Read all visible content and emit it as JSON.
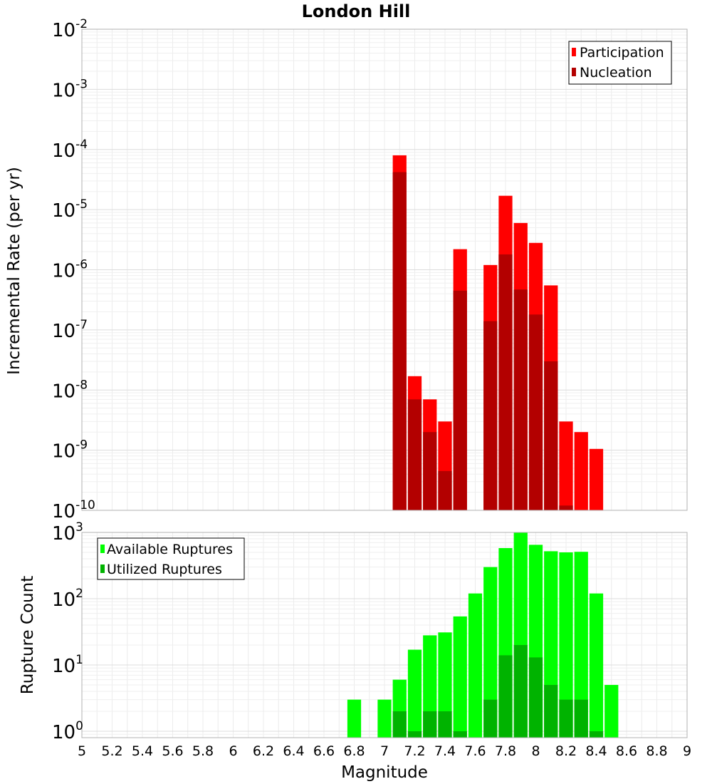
{
  "chart_data": [
    {
      "type": "bar",
      "title": "London Hill",
      "xlabel": "Magnitude",
      "ylabel": "Incremental Rate (per yr)",
      "yscale": "log",
      "ylim": [
        1e-10,
        0.01
      ],
      "xlim": [
        5,
        9
      ],
      "grid": true,
      "legend_position": "top-right",
      "x": [
        7.1,
        7.2,
        7.3,
        7.4,
        7.5,
        7.7,
        7.8,
        7.9,
        8.0,
        8.1,
        8.2,
        8.3,
        8.4
      ],
      "series": [
        {
          "name": "Participation",
          "color": "#ff0000",
          "values": [
            8e-05,
            1.7e-08,
            7e-09,
            3e-09,
            2.2e-06,
            1.2e-06,
            1.7e-05,
            6e-06,
            2.8e-06,
            5.5e-07,
            3e-09,
            2e-09,
            1.05e-09
          ]
        },
        {
          "name": "Nucleation",
          "color": "#b30000",
          "values": [
            4.2e-05,
            7e-09,
            2e-09,
            4.5e-10,
            4.5e-07,
            1.4e-07,
            1.8e-06,
            4.7e-07,
            1.8e-07,
            3e-08,
            1.2e-10,
            null,
            null
          ]
        }
      ]
    },
    {
      "type": "bar",
      "xlabel": "Magnitude",
      "ylabel": "Rupture Count",
      "yscale": "log",
      "ylim": [
        0.8,
        1000
      ],
      "xlim": [
        5,
        9
      ],
      "grid": true,
      "legend_position": "top-left",
      "x": [
        6.8,
        7.0,
        7.1,
        7.2,
        7.3,
        7.4,
        7.5,
        7.6,
        7.7,
        7.8,
        7.9,
        8.0,
        8.1,
        8.2,
        8.3,
        8.4,
        8.5
      ],
      "series": [
        {
          "name": "Available Ruptures",
          "color": "#00ff00",
          "values": [
            3,
            3,
            6,
            17,
            28,
            31,
            54,
            120,
            300,
            580,
            1000,
            650,
            520,
            500,
            510,
            120,
            5
          ]
        },
        {
          "name": "Utilized Ruptures",
          "color": "#00b300",
          "values": [
            null,
            null,
            2,
            1,
            2,
            2,
            1,
            null,
            3,
            14,
            20,
            13,
            5,
            3,
            3,
            1,
            null
          ]
        }
      ]
    }
  ],
  "x_ticks": [
    "5",
    "5.2",
    "5.4",
    "5.6",
    "5.8",
    "6",
    "6.2",
    "6.4",
    "6.6",
    "6.8",
    "7",
    "7.2",
    "7.4",
    "7.6",
    "7.8",
    "8",
    "8.2",
    "8.4",
    "8.6",
    "8.8",
    "9"
  ],
  "top_yticks": [
    {
      "base": "10",
      "exp": "-2"
    },
    {
      "base": "10",
      "exp": "-3"
    },
    {
      "base": "10",
      "exp": "-4"
    },
    {
      "base": "10",
      "exp": "-5"
    },
    {
      "base": "10",
      "exp": "-6"
    },
    {
      "base": "10",
      "exp": "-7"
    },
    {
      "base": "10",
      "exp": "-8"
    },
    {
      "base": "10",
      "exp": "-9"
    },
    {
      "base": "10",
      "exp": "-10"
    }
  ],
  "bottom_yticks": [
    {
      "base": "10",
      "exp": "3"
    },
    {
      "base": "10",
      "exp": "2"
    },
    {
      "base": "10",
      "exp": "1"
    },
    {
      "base": "10",
      "exp": "0"
    }
  ]
}
